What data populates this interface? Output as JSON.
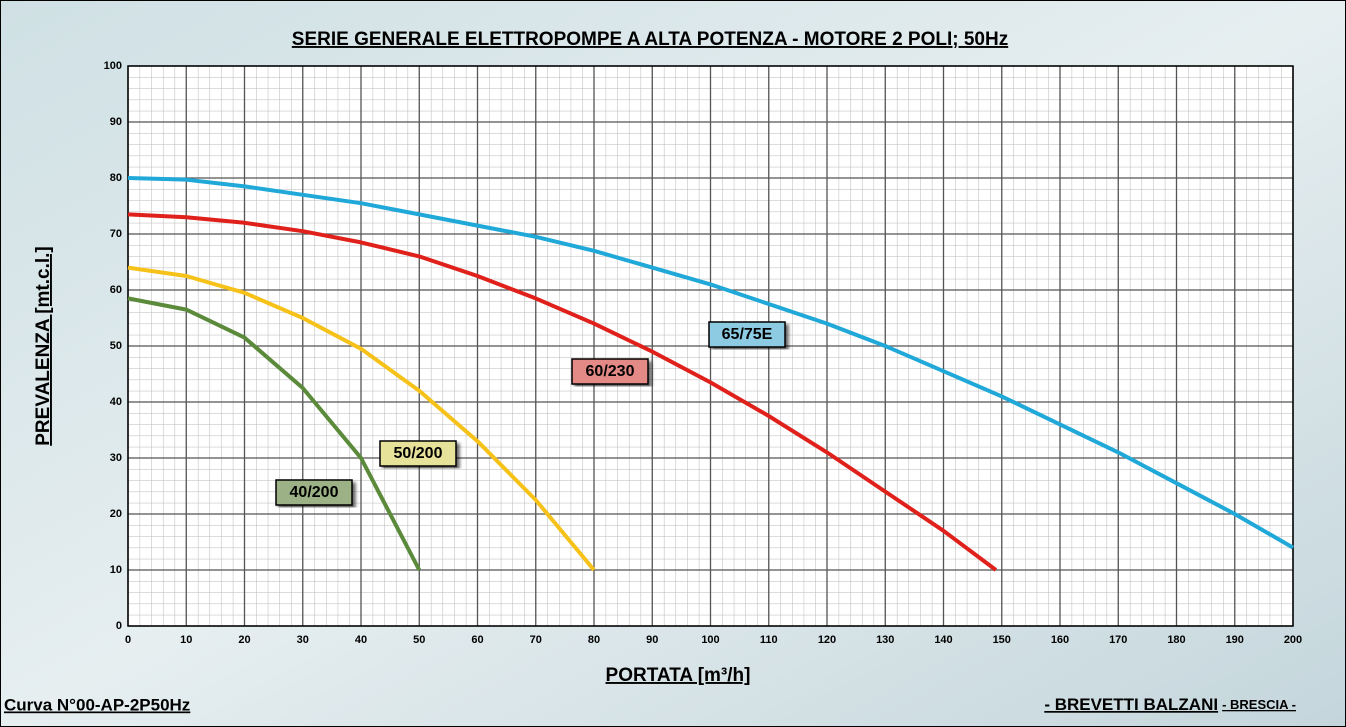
{
  "chart_data": {
    "type": "line",
    "title": "SERIE GENERALE ELETTROPOMPE A ALTA POTENZA - MOTORE 2 POLI; 50Hz",
    "x_label": "PORTATA [m³/h]",
    "y_label": "PREVALENZA [mt.c.l.]",
    "footer_left": "Curva N°00-AP-2P50Hz",
    "footer_right": [
      "- BREVETTI BALZANI",
      "- BRESCIA -"
    ],
    "xlim": [
      0,
      200
    ],
    "ylim": [
      0,
      100
    ],
    "xticks": [
      0,
      10,
      20,
      30,
      40,
      50,
      60,
      70,
      80,
      90,
      100,
      110,
      120,
      130,
      140,
      150,
      160,
      170,
      180,
      190,
      200
    ],
    "yticks": [
      0,
      10,
      20,
      30,
      40,
      50,
      60,
      70,
      80,
      90,
      100
    ],
    "grid": true,
    "series": [
      {
        "name": "65/75E",
        "color": "#1fa8d8",
        "label_color": "#8ccbe2",
        "x": [
          0,
          10,
          20,
          30,
          40,
          50,
          60,
          70,
          80,
          90,
          100,
          110,
          120,
          130,
          140,
          150,
          160,
          170,
          180,
          190,
          200
        ],
        "values": [
          80,
          79.7,
          78.5,
          77,
          75.5,
          73.5,
          71.5,
          69.5,
          67,
          64,
          61,
          57.5,
          54,
          50,
          45.5,
          41,
          36,
          31,
          25.5,
          20,
          14
        ]
      },
      {
        "name": "60/230",
        "color": "#e0201a",
        "label_color": "#e48a86",
        "x": [
          0,
          10,
          20,
          30,
          40,
          50,
          60,
          70,
          80,
          90,
          100,
          110,
          120,
          130,
          140,
          149
        ],
        "values": [
          73.5,
          73,
          72,
          70.5,
          68.5,
          66,
          62.5,
          58.5,
          54,
          49,
          43.5,
          37.5,
          31,
          24,
          17,
          10
        ]
      },
      {
        "name": "50/200",
        "color": "#f6c21a",
        "label_color": "#e6e29a",
        "x": [
          0,
          10,
          20,
          30,
          40,
          50,
          60,
          70,
          80
        ],
        "values": [
          64,
          62.5,
          59.5,
          55,
          49.5,
          42,
          33,
          22.5,
          10
        ]
      },
      {
        "name": "40/200",
        "color": "#5a8a3a",
        "label_color": "#9cb286",
        "x": [
          0,
          10,
          20,
          30,
          40,
          50
        ],
        "values": [
          58.5,
          56.5,
          51.5,
          42.5,
          30,
          10
        ]
      }
    ]
  }
}
